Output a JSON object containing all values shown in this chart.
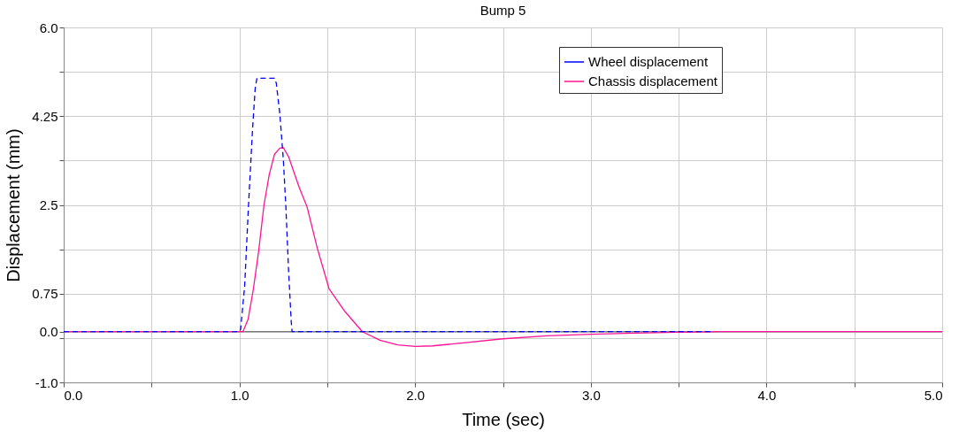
{
  "chart_data": {
    "type": "line",
    "title": "Bump 5",
    "xlabel": "Time (sec)",
    "ylabel": "Displacement (mm)",
    "xlim": [
      0,
      5
    ],
    "ylim": [
      -1,
      6
    ],
    "xticks": [
      {
        "value": 0,
        "label": "0.0"
      },
      {
        "value": 0.5,
        "label": null
      },
      {
        "value": 1,
        "label": "1.0"
      },
      {
        "value": 1.5,
        "label": null
      },
      {
        "value": 2,
        "label": "2.0"
      },
      {
        "value": 2.5,
        "label": null
      },
      {
        "value": 3,
        "label": "3.0"
      },
      {
        "value": 3.5,
        "label": null
      },
      {
        "value": 4,
        "label": "4.0"
      },
      {
        "value": 4.5,
        "label": null
      },
      {
        "value": 5,
        "label": "5.0"
      }
    ],
    "yticks": [
      {
        "value": -1,
        "label": "-1.0"
      },
      {
        "value": -0.125,
        "label": null
      },
      {
        "value": 0,
        "label": "0.0"
      },
      0.75,
      {
        "value": 1.625,
        "label": null
      },
      2.5,
      {
        "value": 3.375,
        "label": null
      },
      4.25,
      {
        "value": 5.125,
        "label": null
      },
      {
        "value": 6,
        "label": "6.0"
      }
    ],
    "grid": true,
    "legend": "top right",
    "ref_lines": [
      {
        "axis": "y",
        "value": 0,
        "color": "#555555"
      }
    ],
    "series": [
      {
        "name": "Wheel displacement",
        "color": "#0000ff",
        "line_style": "dashed",
        "x": [
          0,
          1.0,
          1.007,
          1.03,
          1.052,
          1.075,
          1.09,
          1.1,
          1.15,
          1.2,
          1.21,
          1.23,
          1.25,
          1.264,
          1.28,
          1.295,
          1.3,
          1.4,
          2,
          3,
          3.68
        ],
        "values": [
          0,
          0,
          0.05,
          0.9,
          2.5,
          4.0,
          4.8,
          5.0,
          5.0,
          5.0,
          4.9,
          4.3,
          3.4,
          2.5,
          1.2,
          0.2,
          0,
          0,
          0,
          0,
          0
        ]
      },
      {
        "name": "Chassis displacement",
        "color": "#ff1493",
        "line_style": "solid",
        "x": [
          0,
          1.0,
          1.02,
          1.05,
          1.08,
          1.11,
          1.14,
          1.17,
          1.2,
          1.23,
          1.25,
          1.28,
          1.31,
          1.34,
          1.386,
          1.443,
          1.51,
          1.6,
          1.7,
          1.8,
          1.9,
          2.0,
          2.1,
          2.25,
          2.5,
          2.75,
          3.0,
          3.25,
          3.5,
          3.75,
          4.0,
          4.5,
          5.0
        ],
        "values": [
          0,
          0,
          0,
          0.25,
          0.85,
          1.6,
          2.5,
          3.1,
          3.5,
          3.62,
          3.63,
          3.45,
          3.15,
          2.85,
          2.45,
          1.65,
          0.85,
          0.4,
          0,
          -0.17,
          -0.26,
          -0.29,
          -0.28,
          -0.23,
          -0.14,
          -0.08,
          -0.05,
          -0.03,
          -0.01,
          0,
          0,
          0,
          0
        ]
      }
    ]
  }
}
